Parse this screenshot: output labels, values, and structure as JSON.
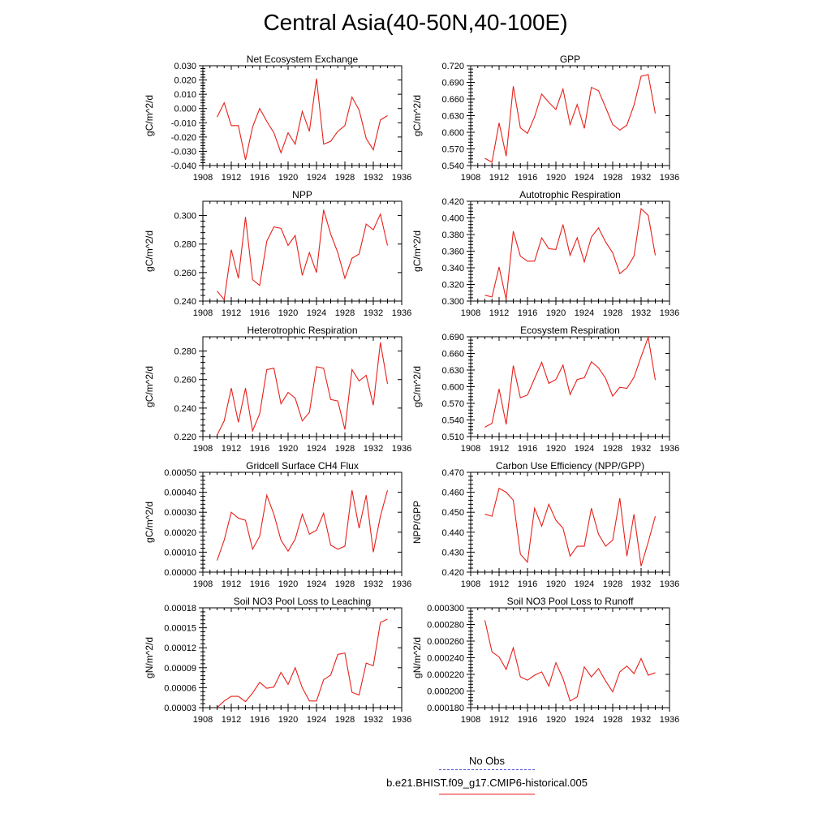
{
  "title": "Central Asia(40-50N,40-100E)",
  "colors": {
    "model": "#e8201a",
    "obs": "#4a4acf",
    "axis": "#000000"
  },
  "legend": {
    "obs_label": "No Obs",
    "model_label": "b.e21.BHIST.f09_g17.CMIP6-historical.005"
  },
  "chart_data": [
    {
      "type": "line",
      "title": "Net Ecosystem Exchange",
      "ylabel": "gC/m^2/d",
      "xlim": [
        1908,
        1936
      ],
      "x_ticks": [
        "1908",
        "1912",
        "1916",
        "1920",
        "1924",
        "1928",
        "1932",
        "1936"
      ],
      "ylim": [
        -0.04,
        0.03
      ],
      "y_ticks": [
        "-0.040",
        "-0.030",
        "-0.020",
        "-0.010",
        "0.000",
        "0.010",
        "0.020",
        "0.030"
      ],
      "series": [
        {
          "x": [
            1910,
            1911,
            1912,
            1913,
            1914,
            1915,
            1916,
            1917,
            1918,
            1919,
            1920,
            1921,
            1922,
            1923,
            1924,
            1925,
            1926,
            1927,
            1928,
            1929,
            1930,
            1931,
            1932,
            1933,
            1934
          ],
          "values": [
            -0.006,
            0.004,
            -0.012,
            -0.012,
            -0.036,
            -0.013,
            0.0,
            -0.009,
            -0.017,
            -0.031,
            -0.017,
            -0.025,
            -0.002,
            -0.016,
            0.021,
            -0.025,
            -0.023,
            -0.016,
            -0.012,
            0.008,
            -0.001,
            -0.021,
            -0.029,
            -0.008,
            -0.005
          ]
        }
      ]
    },
    {
      "type": "line",
      "title": "GPP",
      "ylabel": "gC/m^2/d",
      "xlim": [
        1908,
        1936
      ],
      "x_ticks": [
        "1908",
        "1912",
        "1916",
        "1920",
        "1924",
        "1928",
        "1932",
        "1936"
      ],
      "ylim": [
        0.54,
        0.72
      ],
      "y_ticks": [
        "0.540",
        "0.570",
        "0.600",
        "0.630",
        "0.660",
        "0.690",
        "0.720"
      ],
      "series": [
        {
          "x": [
            1910,
            1911,
            1912,
            1913,
            1914,
            1915,
            1916,
            1917,
            1918,
            1919,
            1920,
            1921,
            1922,
            1923,
            1924,
            1925,
            1926,
            1927,
            1928,
            1929,
            1930,
            1931,
            1932,
            1933,
            1934
          ],
          "values": [
            0.553,
            0.546,
            0.617,
            0.557,
            0.683,
            0.608,
            0.598,
            0.628,
            0.669,
            0.654,
            0.641,
            0.678,
            0.614,
            0.65,
            0.607,
            0.681,
            0.675,
            0.645,
            0.614,
            0.604,
            0.613,
            0.649,
            0.701,
            0.704,
            0.634
          ]
        }
      ]
    },
    {
      "type": "line",
      "title": "NPP",
      "ylabel": "gC/m^2/d",
      "xlim": [
        1908,
        1936
      ],
      "x_ticks": [
        "1908",
        "1912",
        "1916",
        "1920",
        "1924",
        "1928",
        "1932",
        "1936"
      ],
      "ylim": [
        0.24,
        0.31
      ],
      "y_ticks": [
        "0.240",
        "0.260",
        "0.280",
        "0.300"
      ],
      "series": [
        {
          "x": [
            1910,
            1911,
            1912,
            1913,
            1914,
            1915,
            1916,
            1917,
            1918,
            1919,
            1920,
            1921,
            1922,
            1923,
            1924,
            1925,
            1926,
            1927,
            1928,
            1929,
            1930,
            1931,
            1932,
            1933,
            1934
          ],
          "values": [
            0.247,
            0.241,
            0.276,
            0.256,
            0.299,
            0.255,
            0.251,
            0.282,
            0.292,
            0.291,
            0.279,
            0.286,
            0.258,
            0.274,
            0.26,
            0.304,
            0.287,
            0.274,
            0.256,
            0.27,
            0.273,
            0.294,
            0.29,
            0.301,
            0.279
          ]
        }
      ]
    },
    {
      "type": "line",
      "title": "Autotrophic Respiration",
      "ylabel": "gC/m^2/d",
      "xlim": [
        1908,
        1936
      ],
      "x_ticks": [
        "1908",
        "1912",
        "1916",
        "1920",
        "1924",
        "1928",
        "1932",
        "1936"
      ],
      "ylim": [
        0.3,
        0.42
      ],
      "y_ticks": [
        "0.300",
        "0.320",
        "0.340",
        "0.360",
        "0.380",
        "0.400",
        "0.420"
      ],
      "series": [
        {
          "x": [
            1910,
            1911,
            1912,
            1913,
            1914,
            1915,
            1916,
            1917,
            1918,
            1919,
            1920,
            1921,
            1922,
            1923,
            1924,
            1925,
            1926,
            1927,
            1928,
            1929,
            1930,
            1931,
            1932,
            1933,
            1934
          ],
          "values": [
            0.307,
            0.305,
            0.341,
            0.302,
            0.384,
            0.354,
            0.348,
            0.348,
            0.376,
            0.363,
            0.362,
            0.392,
            0.355,
            0.376,
            0.347,
            0.377,
            0.388,
            0.371,
            0.358,
            0.333,
            0.34,
            0.354,
            0.411,
            0.403,
            0.355
          ]
        }
      ]
    },
    {
      "type": "line",
      "title": "Heterotrophic Respiration",
      "ylabel": "gC/m^2/d",
      "xlim": [
        1908,
        1936
      ],
      "x_ticks": [
        "1908",
        "1912",
        "1916",
        "1920",
        "1924",
        "1928",
        "1932",
        "1936"
      ],
      "ylim": [
        0.22,
        0.29
      ],
      "y_ticks": [
        "0.220",
        "0.240",
        "0.260",
        "0.280"
      ],
      "series": [
        {
          "x": [
            1910,
            1911,
            1912,
            1913,
            1914,
            1915,
            1916,
            1917,
            1918,
            1919,
            1920,
            1921,
            1922,
            1923,
            1924,
            1925,
            1926,
            1927,
            1928,
            1929,
            1930,
            1931,
            1932,
            1933,
            1934
          ],
          "values": [
            0.221,
            0.231,
            0.254,
            0.23,
            0.254,
            0.224,
            0.236,
            0.267,
            0.268,
            0.243,
            0.251,
            0.247,
            0.231,
            0.237,
            0.269,
            0.268,
            0.246,
            0.245,
            0.225,
            0.267,
            0.259,
            0.263,
            0.242,
            0.286,
            0.257
          ]
        }
      ]
    },
    {
      "type": "line",
      "title": "Ecosystem Respiration",
      "ylabel": "gC/m^2/d",
      "xlim": [
        1908,
        1936
      ],
      "x_ticks": [
        "1908",
        "1912",
        "1916",
        "1920",
        "1924",
        "1928",
        "1932",
        "1936"
      ],
      "ylim": [
        0.51,
        0.69
      ],
      "y_ticks": [
        "0.510",
        "0.540",
        "0.570",
        "0.600",
        "0.630",
        "0.660",
        "0.690"
      ],
      "series": [
        {
          "x": [
            1910,
            1911,
            1912,
            1913,
            1914,
            1915,
            1916,
            1917,
            1918,
            1919,
            1920,
            1921,
            1922,
            1923,
            1924,
            1925,
            1926,
            1927,
            1928,
            1929,
            1930,
            1931,
            1932,
            1933,
            1934
          ],
          "values": [
            0.527,
            0.534,
            0.596,
            0.532,
            0.638,
            0.58,
            0.585,
            0.615,
            0.644,
            0.606,
            0.613,
            0.639,
            0.586,
            0.613,
            0.616,
            0.645,
            0.634,
            0.615,
            0.583,
            0.599,
            0.597,
            0.617,
            0.654,
            0.689,
            0.612
          ]
        }
      ]
    },
    {
      "type": "line",
      "title": "Gridcell Surface CH4 Flux",
      "ylabel": "gC/m^2/d",
      "xlim": [
        1908,
        1936
      ],
      "x_ticks": [
        "1908",
        "1912",
        "1916",
        "1920",
        "1924",
        "1928",
        "1932",
        "1936"
      ],
      "ylim": [
        0.0,
        0.0005
      ],
      "y_ticks": [
        "0.00000",
        "0.00010",
        "0.00020",
        "0.00030",
        "0.00040",
        "0.00050"
      ],
      "series": [
        {
          "x": [
            1910,
            1911,
            1912,
            1913,
            1914,
            1915,
            1916,
            1917,
            1918,
            1919,
            1920,
            1921,
            1922,
            1923,
            1924,
            1925,
            1926,
            1927,
            1928,
            1929,
            1930,
            1931,
            1932,
            1933,
            1934
          ],
          "values": [
            5.8e-05,
            0.00016,
            0.0003,
            0.00027,
            0.00026,
            0.000115,
            0.00018,
            0.000385,
            0.00029,
            0.00016,
            0.000105,
            0.000165,
            0.00029,
            0.00019,
            0.00021,
            0.000295,
            0.000135,
            0.000115,
            0.00013,
            0.00041,
            0.00022,
            0.000385,
            0.0001,
            0.00028,
            0.00041
          ]
        }
      ]
    },
    {
      "type": "line",
      "title": "Carbon Use Efficiency (NPP/GPP)",
      "ylabel": "NPP/GPP",
      "xlim": [
        1908,
        1936
      ],
      "x_ticks": [
        "1908",
        "1912",
        "1916",
        "1920",
        "1924",
        "1928",
        "1932",
        "1936"
      ],
      "ylim": [
        0.42,
        0.47
      ],
      "y_ticks": [
        "0.420",
        "0.430",
        "0.440",
        "0.450",
        "0.460",
        "0.470"
      ],
      "series": [
        {
          "x": [
            1910,
            1911,
            1912,
            1913,
            1914,
            1915,
            1916,
            1917,
            1918,
            1919,
            1920,
            1921,
            1922,
            1923,
            1924,
            1925,
            1926,
            1927,
            1928,
            1929,
            1930,
            1931,
            1932,
            1933,
            1934
          ],
          "values": [
            0.449,
            0.448,
            0.462,
            0.46,
            0.456,
            0.429,
            0.425,
            0.452,
            0.443,
            0.454,
            0.446,
            0.442,
            0.428,
            0.433,
            0.433,
            0.452,
            0.439,
            0.433,
            0.436,
            0.457,
            0.428,
            0.449,
            0.423,
            0.435,
            0.448
          ]
        }
      ]
    },
    {
      "type": "line",
      "title": "Soil NO3 Pool Loss to Leaching",
      "ylabel": "gN/m^2/d",
      "xlim": [
        1908,
        1936
      ],
      "x_ticks": [
        "1908",
        "1912",
        "1916",
        "1920",
        "1924",
        "1928",
        "1932",
        "1936"
      ],
      "ylim": [
        3e-05,
        0.00018
      ],
      "y_ticks": [
        "0.00003",
        "0.00006",
        "0.00009",
        "0.00012",
        "0.00015",
        "0.00018"
      ],
      "series": [
        {
          "x": [
            1910,
            1911,
            1912,
            1913,
            1914,
            1915,
            1916,
            1917,
            1918,
            1919,
            1920,
            1921,
            1922,
            1923,
            1924,
            1925,
            1926,
            1927,
            1928,
            1929,
            1930,
            1931,
            1932,
            1933,
            1934
          ],
          "values": [
            3e-05,
            4e-05,
            4.7e-05,
            4.7e-05,
            3.9e-05,
            5.2e-05,
            6.8e-05,
            5.9e-05,
            6.1e-05,
            8.3e-05,
            6.5e-05,
            9e-05,
            6e-05,
            4e-05,
            4e-05,
            7.2e-05,
            7.9e-05,
            0.00011,
            0.000112,
            5.3e-05,
            4.9e-05,
            9.7e-05,
            9.3e-05,
            0.000158,
            0.000163
          ]
        }
      ]
    },
    {
      "type": "line",
      "title": "Soil NO3 Pool Loss to Runoff",
      "ylabel": "gN/m^2/d",
      "xlim": [
        1908,
        1936
      ],
      "x_ticks": [
        "1908",
        "1912",
        "1916",
        "1920",
        "1924",
        "1928",
        "1932",
        "1936"
      ],
      "ylim": [
        0.00018,
        0.0003
      ],
      "y_ticks": [
        "0.000180",
        "0.000200",
        "0.000220",
        "0.000240",
        "0.000260",
        "0.000280",
        "0.000300"
      ],
      "series": [
        {
          "x": [
            1910,
            1911,
            1912,
            1913,
            1914,
            1915,
            1916,
            1917,
            1918,
            1919,
            1920,
            1921,
            1922,
            1923,
            1924,
            1925,
            1926,
            1927,
            1928,
            1929,
            1930,
            1931,
            1932,
            1933,
            1934
          ],
          "values": [
            0.000285,
            0.000247,
            0.000241,
            0.000226,
            0.000252,
            0.000217,
            0.000213,
            0.000219,
            0.000223,
            0.000206,
            0.000234,
            0.000215,
            0.000188,
            0.000193,
            0.000229,
            0.000217,
            0.000227,
            0.000212,
            0.000199,
            0.000223,
            0.00023,
            0.000221,
            0.000239,
            0.000219,
            0.000222
          ]
        }
      ]
    }
  ]
}
